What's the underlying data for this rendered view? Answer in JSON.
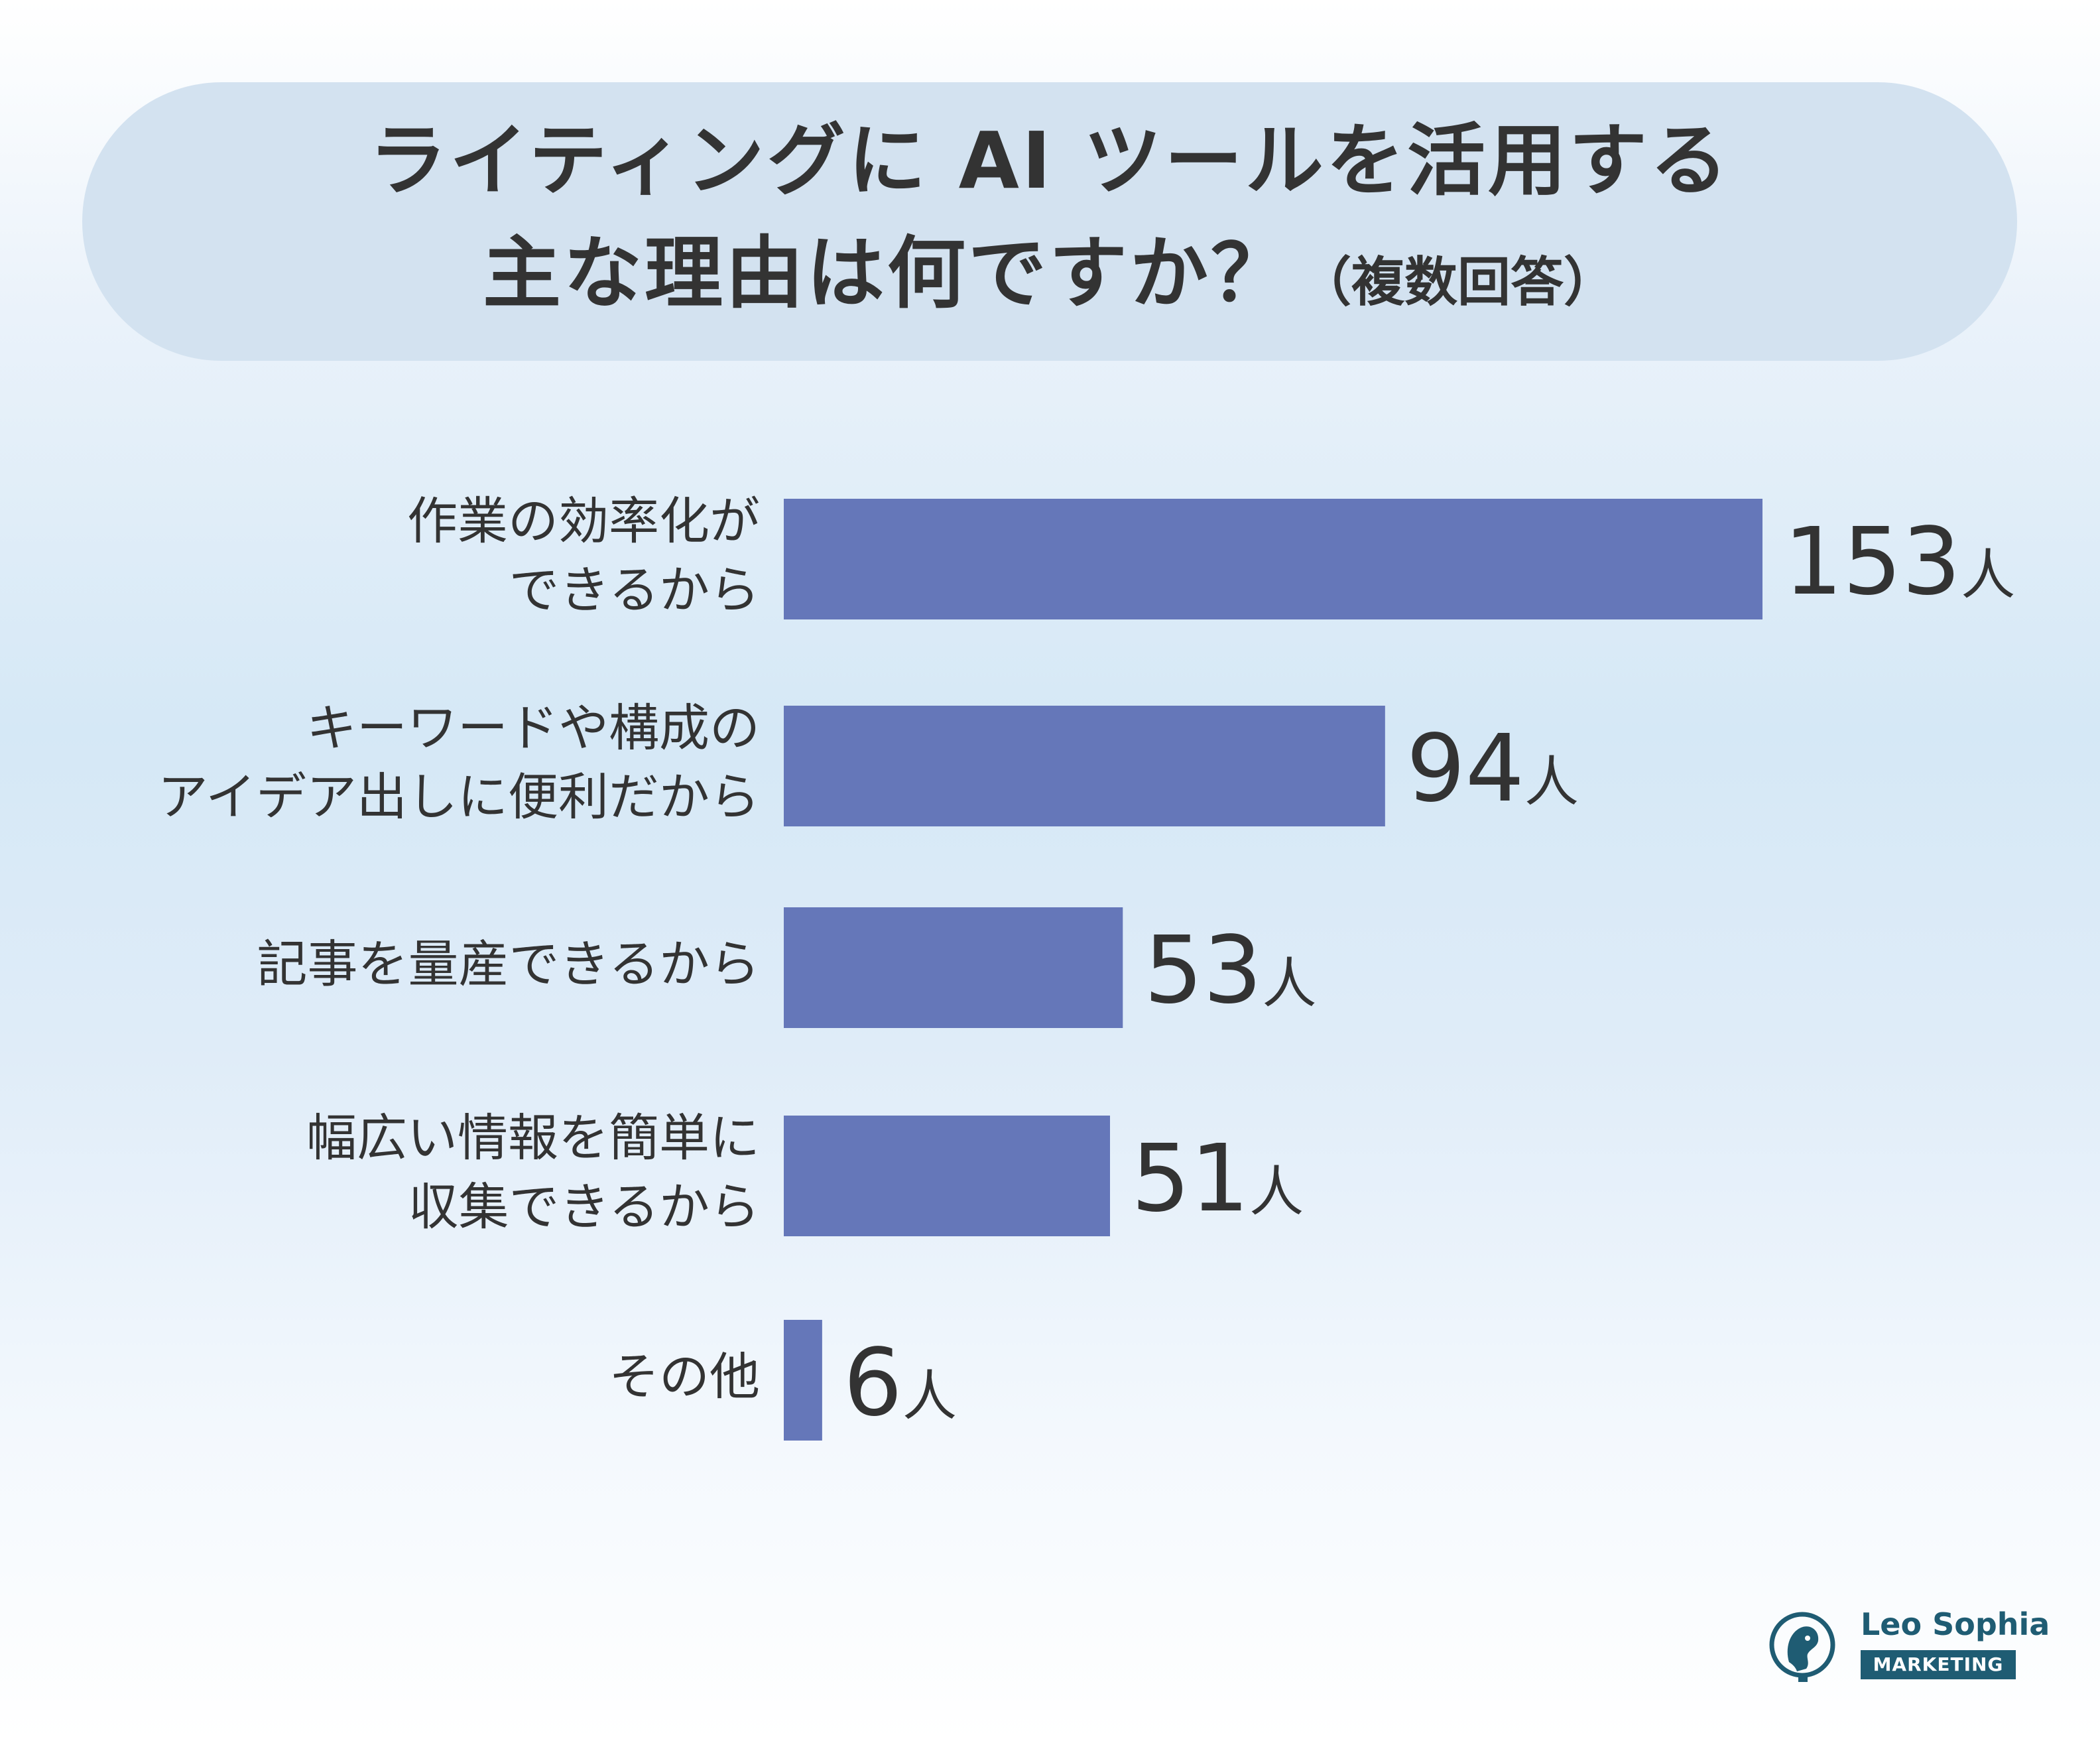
{
  "title": {
    "line1": "ライティングに AI ツールを活用する",
    "line2": "主な理由は何ですか？",
    "note": "（複数回答）"
  },
  "chart_data": {
    "type": "bar",
    "orientation": "horizontal",
    "title": "ライティングに AI ツールを活用する 主な理由は何ですか？（複数回答）",
    "categories": [
      [
        "作業の効率化が",
        "できるから"
      ],
      [
        "キーワードや構成の",
        "アイデア出しに便利だから"
      ],
      [
        "記事を量産できるから"
      ],
      [
        "幅広い情報を簡単に",
        "収集できるから"
      ],
      [
        "その他"
      ]
    ],
    "values": [
      153,
      94,
      53,
      51,
      6
    ],
    "unit": "人",
    "xlim": [
      0,
      153
    ],
    "grid": false,
    "legend": "none"
  },
  "colors": {
    "bar": "#6577b9",
    "text": "#333333",
    "title_bg": "#d3e2f0",
    "logo": "#1f5c73"
  },
  "logo": {
    "name": "Leo Sophia",
    "tag": "MARKETING",
    "icon": "lion-head-icon"
  }
}
